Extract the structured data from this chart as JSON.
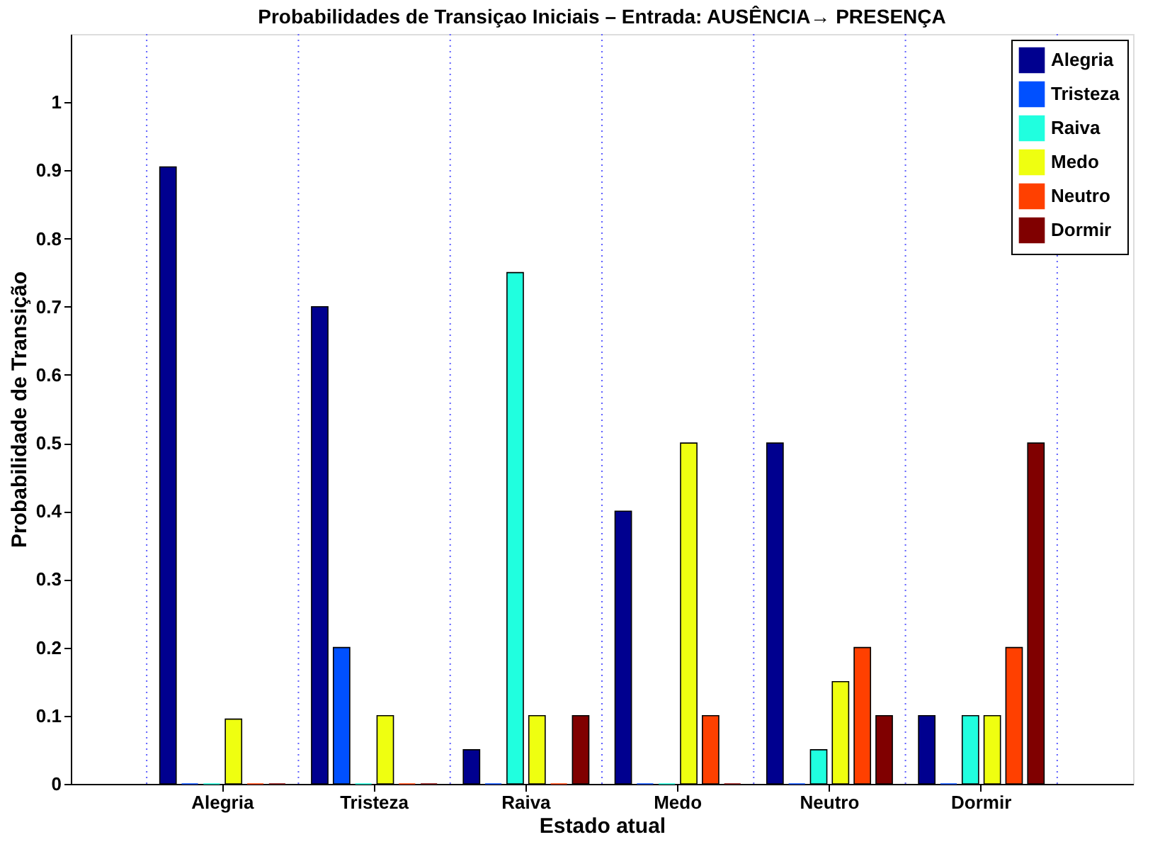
{
  "chart_data": {
    "type": "bar",
    "title": "Probabilidades de Transiçao Iniciais – Entrada: AUSÊNCIA→ PRESENÇA",
    "xlabel": "Estado atual",
    "ylabel": "Probabilidade de Transição",
    "categories": [
      "Alegria",
      "Tristeza",
      "Raiva",
      "Medo",
      "Neutro",
      "Dormir"
    ],
    "series": [
      {
        "name": "Alegria",
        "color": "#00008f",
        "values": [
          0.905,
          0.7,
          0.05,
          0.4,
          0.5,
          0.1
        ]
      },
      {
        "name": "Tristeza",
        "color": "#0050ff",
        "values": [
          0,
          0.2,
          0,
          0,
          0,
          0
        ]
      },
      {
        "name": "Raiva",
        "color": "#20ffdf",
        "values": [
          0,
          0,
          0.75,
          0,
          0.05,
          0.1
        ]
      },
      {
        "name": "Medo",
        "color": "#efff10",
        "values": [
          0.095,
          0.1,
          0.1,
          0.5,
          0.15,
          0.1
        ]
      },
      {
        "name": "Neutro",
        "color": "#ff4000",
        "values": [
          0,
          0,
          0,
          0.1,
          0.2,
          0.2
        ]
      },
      {
        "name": "Dormir",
        "color": "#800000",
        "values": [
          0,
          0,
          0.1,
          0,
          0.1,
          0.5
        ]
      }
    ],
    "ylim": [
      0,
      1.1
    ],
    "yticks": [
      0,
      0.1,
      0.2,
      0.3,
      0.4,
      0.5,
      0.6,
      0.7,
      0.8,
      0.9,
      1
    ],
    "grid": "x",
    "legend": "top right"
  }
}
